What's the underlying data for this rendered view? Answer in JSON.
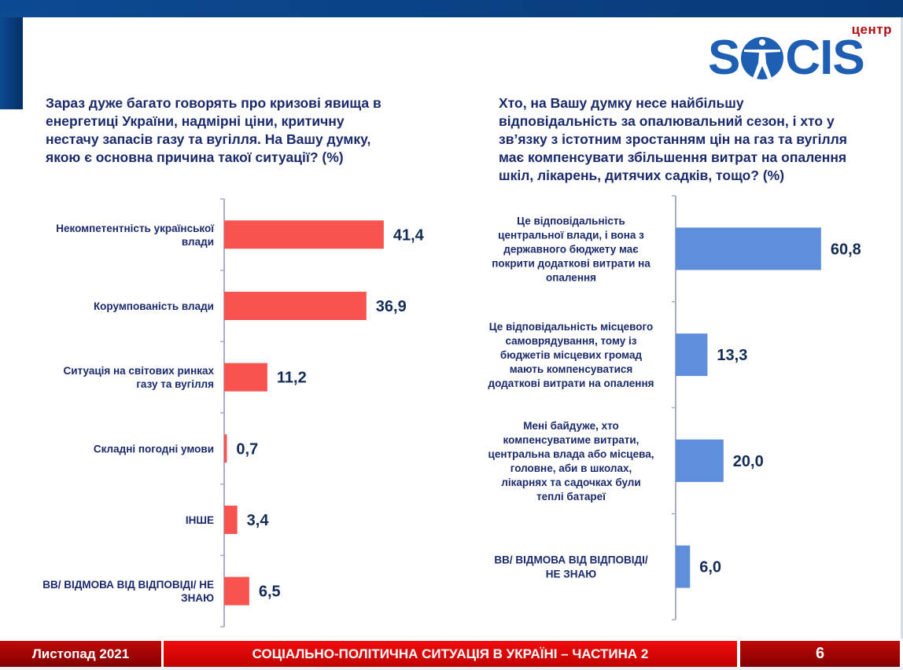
{
  "logo": {
    "centr": "центр",
    "word_left": "S",
    "word_right": "CIS",
    "figure_icon": "vitruvian-figure-icon"
  },
  "colors": {
    "left_bar": "#f75450",
    "right_bar": "#5f8fdc",
    "text": "#1b2a6b",
    "value_text": "#132c55",
    "brand_blue": "#1e5fb4",
    "footer_red": "#e00000"
  },
  "questions": {
    "left": "Зараз дуже багато говорять про кризові явища в енергетиці України, надмірні ціни, критичну нестачу запасів газу та вугілля. На Вашу думку, якою є основна причина такої ситуації? (%)",
    "right": "Хто, на Вашу думку несе найбільшу відповідальність за опалювальний сезон, і хто у зв’язку з істотним зростанням цін на газ та вугілля має компенсувати збільшення витрат на опалення шкіл, лікарень, дитячих садків, тощо? (%)"
  },
  "chart_data": [
    {
      "type": "bar",
      "orientation": "horizontal",
      "title": "Зараз дуже багато говорять про кризові явища в енергетиці України, надмірні ціни, критичну нестачу запасів газу та вугілля. На Вашу думку, якою є основна причина такої ситуації? (%)",
      "categories": [
        [
          "Некомпетентність української",
          "влади"
        ],
        [
          "Корумпованість влади"
        ],
        [
          "Ситуація на світових ринках",
          "газу та вугілля"
        ],
        [
          "Складні погодні умови"
        ],
        [
          "ІНШЕ"
        ],
        [
          "ВВ/ ВІДМОВА ВІД ВІДПОВІДІ/ НЕ",
          "ЗНАЮ"
        ]
      ],
      "values": [
        41.4,
        36.9,
        11.2,
        0.7,
        3.4,
        6.5
      ],
      "value_labels": [
        "41,4",
        "36,9",
        "11,2",
        "0,7",
        "3,4",
        "6,5"
      ],
      "xlabel": "",
      "ylabel": "",
      "xlim": [
        0,
        100
      ],
      "grid": false,
      "legend": "none",
      "color": "#f75450"
    },
    {
      "type": "bar",
      "orientation": "horizontal",
      "title": "Хто, на Вашу думку несе найбільшу відповідальність за опалювальний сезон, і хто у зв’язку з істотним зростанням цін на газ та вугілля має компенсувати збільшення витрат на опалення шкіл, лікарень, дитячих садків, тощо? (%)",
      "categories": [
        [
          "Це відповідальність",
          "центральної влади, і вона з",
          "державного бюджету має",
          "покрити додаткові витрати на",
          "опалення"
        ],
        [
          "Це відповідальність місцевого",
          "самоврядування, тому із",
          "бюджетів місцевих громад",
          "мають компенсуватися",
          "додаткові витрати на опалення"
        ],
        [
          "Мені байдуже, хто",
          "компенсуватиме витрати,",
          "центральна влада або місцева,",
          "головне, аби в школах,",
          "лікарнях та садочках були",
          "теплі батареї"
        ],
        [
          "ВВ/ ВІДМОВА ВІД ВІДПОВІДІ/",
          "НЕ ЗНАЮ"
        ]
      ],
      "values": [
        60.8,
        13.3,
        20.0,
        6.0
      ],
      "value_labels": [
        "60,8",
        "13,3",
        "20,0",
        "6,0"
      ],
      "xlabel": "",
      "ylabel": "",
      "xlim": [
        0,
        100
      ],
      "grid": false,
      "legend": "none",
      "color": "#5f8fdc"
    }
  ],
  "footer": {
    "date": "Листопад 2021",
    "title": "СОЦІАЛЬНО-ПОЛІТИЧНА СИТУАЦІЯ В УКРАЇНІ – ЧАСТИНА 2",
    "page": "6"
  }
}
